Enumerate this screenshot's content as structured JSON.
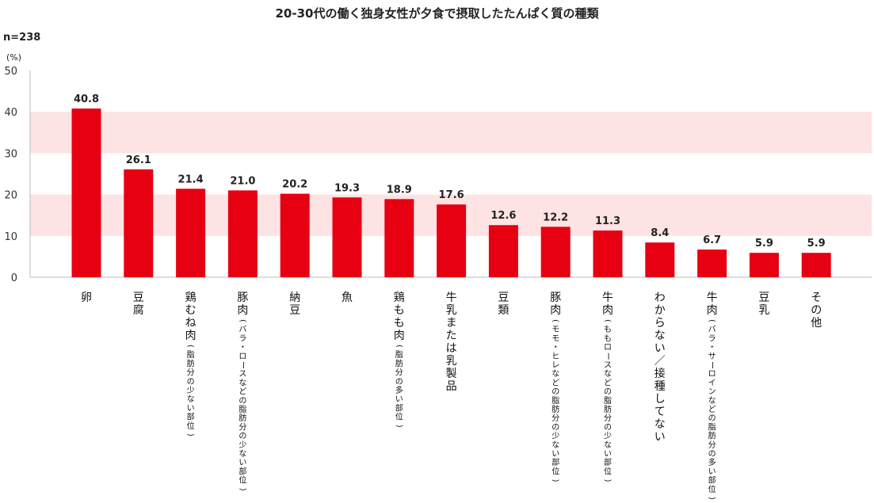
{
  "title": "20-30代の働く独身女性が夕食で摂取したたんぱく質の種類",
  "sample_size": "n=238",
  "unit": "(%)",
  "colors": {
    "bar": "#e60012",
    "band": "#fde3e3",
    "axis": "#bbbbbb"
  },
  "chart_data": {
    "type": "bar",
    "title": "20-30代の働く独身女性が夕食で摂取したたんぱく質の種類",
    "ylabel": "(%)",
    "ylim": [
      0,
      50
    ],
    "yticks": [
      0,
      10,
      20,
      30,
      40,
      50
    ],
    "grid": "alternating shaded bands",
    "categories": [
      {
        "main": "卵",
        "sub": ""
      },
      {
        "main": "豆腐",
        "sub": ""
      },
      {
        "main": "鶏むね肉",
        "sub": "(脂肪分の少ない部位)"
      },
      {
        "main": "豚肉",
        "sub": "(バラ・ロースなどの脂肪分の少ない部位)"
      },
      {
        "main": "納豆",
        "sub": ""
      },
      {
        "main": "魚",
        "sub": ""
      },
      {
        "main": "鶏もも肉",
        "sub": "(脂肪分の多い部位)"
      },
      {
        "main": "牛乳または乳製品",
        "sub": ""
      },
      {
        "main": "豆類",
        "sub": ""
      },
      {
        "main": "豚肉",
        "sub": "(モモ・ヒレなどの脂肪分の少ない部位)"
      },
      {
        "main": "牛肉",
        "sub": "(ももロースなどの脂肪分の少ない部位)"
      },
      {
        "main": "わからない／接種してない",
        "sub": ""
      },
      {
        "main": "牛肉",
        "sub": "(バラ・サーロインなどの脂肪分の多い部位)"
      },
      {
        "main": "豆乳",
        "sub": ""
      },
      {
        "main": "その他",
        "sub": ""
      }
    ],
    "values": [
      40.8,
      26.1,
      21.4,
      21.0,
      20.2,
      19.3,
      18.9,
      17.6,
      12.6,
      12.2,
      11.3,
      8.4,
      6.7,
      5.9,
      5.9
    ],
    "value_labels": [
      "40.8",
      "26.1",
      "21.4",
      "21.0",
      "20.2",
      "19.3",
      "18.9",
      "17.6",
      "12.6",
      "12.2",
      "11.3",
      "8.4",
      "6.7",
      "5.9",
      "5.9"
    ]
  }
}
